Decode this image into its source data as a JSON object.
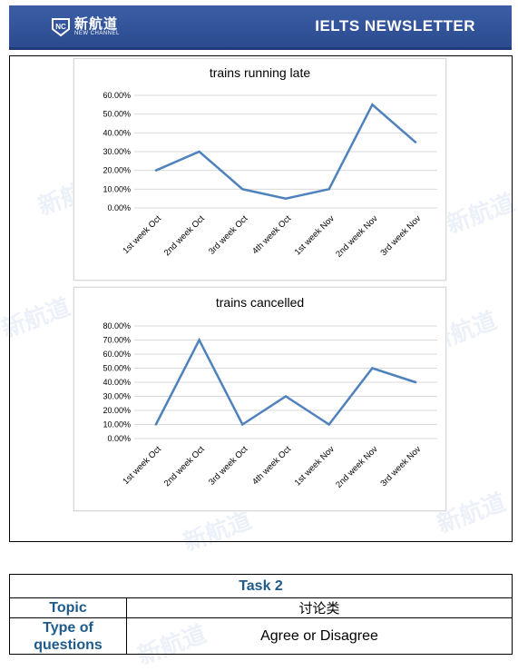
{
  "header": {
    "brand_cn": "新航道",
    "brand_en": "NEW CHANNEL",
    "logo_glyph": "NC",
    "title": "IELTS  NEWSLETTER"
  },
  "watermark": {
    "text": "新航道"
  },
  "chart_data": [
    {
      "type": "line",
      "title": "trains running late",
      "categories": [
        "1st week Oct",
        "2nd week Oct",
        "3rd week Oct",
        "4th week Oct",
        "1st week Nov",
        "2nd week Nov",
        "3rd week Nov"
      ],
      "values": [
        20,
        30,
        10,
        5,
        10,
        55,
        35
      ],
      "ylim": [
        0,
        60
      ],
      "yticks": [
        "0.00%",
        "10.00%",
        "20.00%",
        "30.00%",
        "40.00%",
        "50.00%",
        "60.00%"
      ],
      "ytick_values": [
        0,
        10,
        20,
        30,
        40,
        50,
        60
      ],
      "grid": true,
      "color": "#4f81bd"
    },
    {
      "type": "line",
      "title": "trains cancelled",
      "categories": [
        "1st week Oct",
        "2nd week Oct",
        "3rd week Oct",
        "4th week Oct",
        "1st week Nov",
        "2nd week Nov",
        "3rd week Nov"
      ],
      "values": [
        10,
        70,
        10,
        30,
        10,
        50,
        40
      ],
      "ylim": [
        0,
        80
      ],
      "yticks": [
        "0.00%",
        "10.00%",
        "20.00%",
        "30.00%",
        "40.00%",
        "50.00%",
        "60.00%",
        "70.00%",
        "80.00%"
      ],
      "ytick_values": [
        0,
        10,
        20,
        30,
        40,
        50,
        60,
        70,
        80
      ],
      "grid": true,
      "color": "#4f81bd"
    }
  ],
  "task": {
    "heading": "Task 2",
    "topic_label": "Topic",
    "topic_value": "讨论类",
    "type_label_line1": "Type of",
    "type_label_line2": "questions",
    "type_value": "Agree or Disagree"
  }
}
